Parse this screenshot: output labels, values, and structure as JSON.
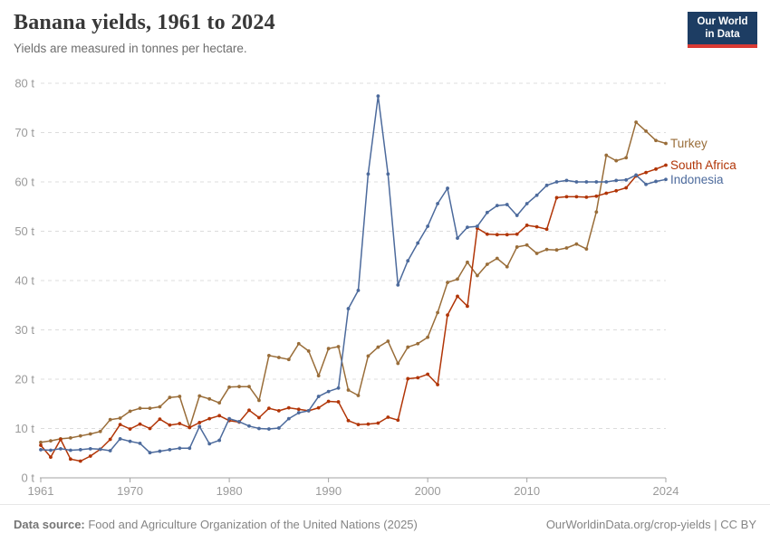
{
  "header": {
    "title": "Banana yields, 1961 to 2024",
    "subtitle": "Yields are measured in tonnes per hectare."
  },
  "logo": {
    "line1": "Our World",
    "line2": "in Data",
    "bg": "#1d3d63",
    "accent": "#d93a34"
  },
  "chart_data": {
    "type": "line",
    "title": "Banana yields, 1961 to 2024",
    "ylabel": "tonnes per hectare",
    "ylim": [
      0,
      80
    ],
    "yticks": [
      0,
      10,
      20,
      30,
      40,
      50,
      60,
      70,
      80
    ],
    "ytick_suffix": " t",
    "xticks": [
      1961,
      1970,
      1980,
      1990,
      2000,
      2010,
      2024
    ],
    "grid": "horizontal-dashed",
    "legend_position": "end-of-line-labels",
    "x": [
      1961,
      1962,
      1963,
      1964,
      1965,
      1966,
      1967,
      1968,
      1969,
      1970,
      1971,
      1972,
      1973,
      1974,
      1975,
      1976,
      1977,
      1978,
      1979,
      1980,
      1981,
      1982,
      1983,
      1984,
      1985,
      1986,
      1987,
      1988,
      1989,
      1990,
      1991,
      1992,
      1993,
      1994,
      1995,
      1996,
      1997,
      1998,
      1999,
      2000,
      2001,
      2002,
      2003,
      2004,
      2005,
      2006,
      2007,
      2008,
      2009,
      2010,
      2011,
      2012,
      2013,
      2014,
      2015,
      2016,
      2017,
      2018,
      2019,
      2020,
      2021,
      2022,
      2023,
      2024
    ],
    "series": [
      {
        "name": "Turkey",
        "color": "#996D39",
        "values": [
          7.2,
          7.5,
          7.9,
          8.1,
          8.5,
          8.9,
          9.4,
          11.8,
          12.1,
          13.5,
          14.1,
          14.1,
          14.4,
          16.3,
          16.5,
          10.2,
          16.6,
          16.0,
          15.2,
          18.4,
          18.5,
          18.5,
          15.7,
          24.8,
          24.4,
          24.0,
          27.2,
          25.7,
          20.7,
          26.2,
          26.6,
          17.8,
          16.7,
          24.7,
          26.5,
          27.7,
          23.2,
          26.5,
          27.2,
          28.5,
          33.5,
          39.6,
          40.3,
          43.7,
          41.0,
          43.3,
          44.5,
          42.8,
          46.8,
          47.2,
          45.5,
          46.3,
          46.2,
          46.6,
          47.4,
          46.4,
          53.9,
          65.4,
          64.3,
          64.9,
          72.1,
          70.3,
          68.4,
          67.8
        ]
      },
      {
        "name": "South Africa",
        "color": "#B13507",
        "values": [
          6.6,
          4.2,
          7.8,
          3.8,
          3.4,
          4.4,
          5.8,
          7.8,
          10.8,
          9.9,
          10.9,
          10.0,
          11.9,
          10.7,
          11.0,
          10.2,
          11.2,
          12.0,
          12.6,
          11.6,
          11.3,
          13.7,
          12.2,
          14.1,
          13.6,
          14.2,
          13.9,
          13.6,
          14.2,
          15.5,
          15.4,
          11.6,
          10.8,
          10.9,
          11.1,
          12.3,
          11.7,
          20.1,
          20.3,
          21.0,
          18.9,
          33.0,
          36.8,
          34.8,
          50.6,
          49.4,
          49.3,
          49.3,
          49.4,
          51.2,
          50.9,
          50.4,
          56.8,
          57.0,
          57.0,
          56.9,
          57.1,
          57.7,
          58.2,
          58.8,
          61.2,
          61.9,
          62.6,
          63.4
        ]
      },
      {
        "name": "Indonesia",
        "color": "#4C6A9C",
        "values": [
          5.7,
          5.6,
          5.9,
          5.6,
          5.7,
          5.9,
          5.8,
          5.5,
          7.9,
          7.4,
          7.0,
          5.1,
          5.4,
          5.7,
          6.0,
          6.0,
          10.4,
          6.9,
          7.6,
          12.0,
          11.4,
          10.5,
          10.0,
          9.9,
          10.1,
          12.0,
          13.2,
          13.6,
          16.5,
          17.5,
          18.2,
          34.3,
          38.0,
          61.6,
          77.4,
          61.6,
          39.1,
          44.0,
          47.6,
          51.0,
          55.6,
          58.7,
          48.6,
          50.8,
          51.0,
          53.8,
          55.2,
          55.4,
          53.2,
          55.6,
          57.3,
          59.3,
          60.0,
          60.3,
          60.0,
          60.0,
          60.0,
          60.0,
          60.3,
          60.4,
          61.4,
          59.5,
          60.1,
          60.5
        ]
      }
    ]
  },
  "footer": {
    "source_label": "Data source:",
    "source_text": " Food and Agriculture Organization of the United Nations (2025)",
    "link_text": "OurWorldinData.org/crop-yields",
    "separator": " | ",
    "license": "CC BY"
  }
}
